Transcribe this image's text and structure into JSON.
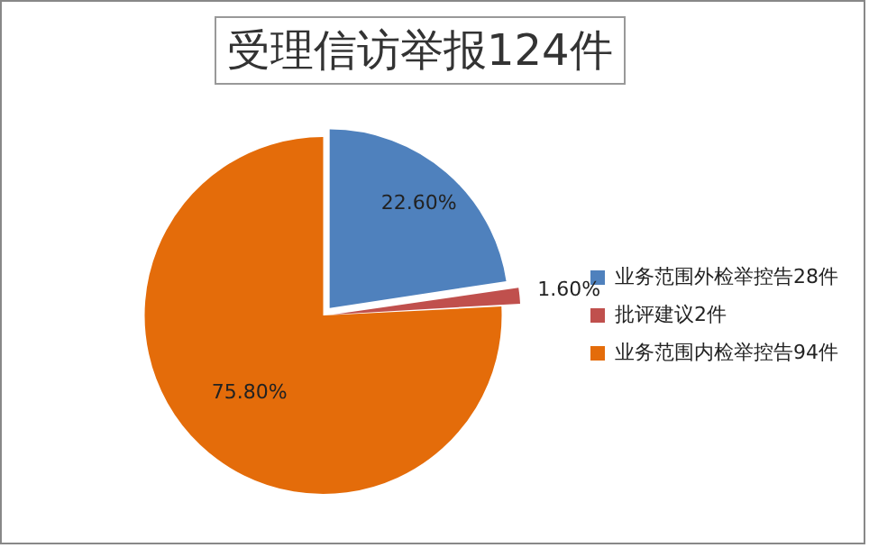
{
  "chart_data": {
    "type": "pie",
    "title": "受理信访举报124件",
    "categories": [
      "业务范围外检举控告28件",
      "批评建议2件",
      "业务范围内检举控告94件"
    ],
    "values": [
      22.6,
      1.6,
      75.8
    ],
    "colors": [
      "#4f81bd",
      "#c0504d",
      "#e46c0a"
    ],
    "value_labels": [
      "22.60%",
      "1.60%",
      "75.80%"
    ],
    "legend": "right"
  }
}
